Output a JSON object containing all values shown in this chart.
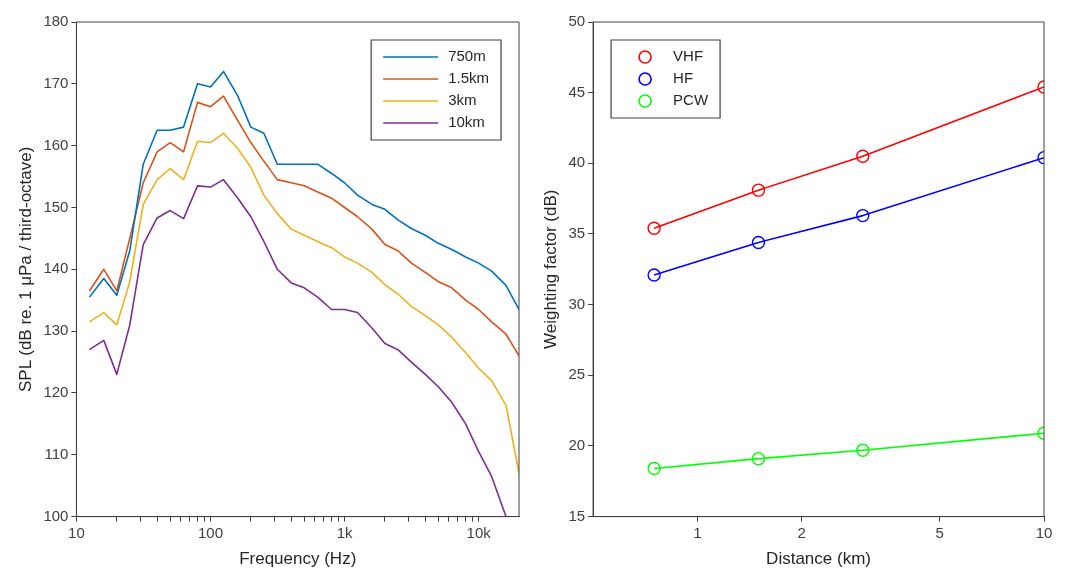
{
  "chart_data": [
    {
      "type": "line",
      "xlabel": "Frequency (Hz)",
      "ylabel": "SPL (dB re. 1 μPa / third-octave)",
      "log": "x",
      "grid": false,
      "legend": "top right",
      "marker": "none",
      "line_style": "solid",
      "x": [
        12.5,
        16,
        20,
        25,
        31.5,
        40,
        50,
        63,
        80,
        100,
        125,
        160,
        200,
        250,
        315,
        400,
        500,
        630,
        800,
        1000,
        1250,
        1600,
        2000,
        2500,
        3150,
        4000,
        5000,
        6300,
        8000,
        10000,
        12500,
        16000,
        20000
      ],
      "xlim": [
        10,
        20000
      ],
      "ylim": [
        100,
        180
      ],
      "xticks": [
        10,
        {
          "value": 20,
          "label": null
        },
        {
          "value": 30,
          "label": null
        },
        {
          "value": 40,
          "label": null
        },
        {
          "value": 50,
          "label": null
        },
        {
          "value": 60,
          "label": null
        },
        {
          "value": 70,
          "label": null
        },
        {
          "value": 80,
          "label": null
        },
        {
          "value": 90,
          "label": null
        },
        100,
        {
          "value": 200,
          "label": null
        },
        {
          "value": 300,
          "label": null
        },
        {
          "value": 400,
          "label": null
        },
        {
          "value": 500,
          "label": null
        },
        {
          "value": 600,
          "label": null
        },
        {
          "value": 700,
          "label": null
        },
        {
          "value": 800,
          "label": null
        },
        {
          "value": 900,
          "label": null
        },
        {
          "value": 1000,
          "label": "1k"
        },
        {
          "value": 2000,
          "label": null
        },
        {
          "value": 3000,
          "label": null
        },
        {
          "value": 4000,
          "label": null
        },
        {
          "value": 5000,
          "label": null
        },
        {
          "value": 6000,
          "label": null
        },
        {
          "value": 7000,
          "label": null
        },
        {
          "value": 8000,
          "label": null
        },
        {
          "value": 9000,
          "label": null
        },
        {
          "value": 10000,
          "label": "10k"
        }
      ],
      "yticks": [
        100,
        110,
        120,
        130,
        140,
        150,
        160,
        170,
        180
      ],
      "series": [
        {
          "name": "750m",
          "color": "#0072bd",
          "values": [
            135.5,
            138.5,
            135.8,
            143,
            157,
            162.5,
            162.5,
            163,
            170,
            169.5,
            172,
            168,
            163,
            162,
            157,
            157,
            157,
            157,
            155.5,
            154,
            152,
            150.5,
            149.7,
            148,
            146.6,
            145.5,
            144.2,
            143.2,
            142,
            141,
            139.7,
            137.4,
            133.5
          ]
        },
        {
          "name": "1.5km",
          "color": "#d95319",
          "values": [
            136.5,
            140,
            136.5,
            145,
            154,
            159,
            160.5,
            159,
            167,
            166.3,
            168,
            164,
            160.5,
            157.5,
            154.5,
            154,
            153.5,
            152.5,
            151.5,
            150,
            148.5,
            146.5,
            144,
            143,
            141,
            139.5,
            138,
            137,
            135,
            133.5,
            131.5,
            129.5,
            126
          ]
        },
        {
          "name": "3km",
          "color": "#edb120",
          "values": [
            131.5,
            133,
            131,
            138,
            150.5,
            154.5,
            156.3,
            154.5,
            160.7,
            160.5,
            162,
            159.5,
            156.5,
            152,
            149,
            146.5,
            145.5,
            144.5,
            143.5,
            142,
            141,
            139.5,
            137.5,
            136,
            134,
            132.5,
            131,
            129,
            126.5,
            124,
            122,
            118,
            107
          ]
        },
        {
          "name": "10km",
          "color": "#7e2f8e",
          "values": [
            127,
            128.5,
            123,
            131,
            144,
            148.3,
            149.5,
            148.2,
            153.5,
            153.3,
            154.5,
            151.5,
            148.5,
            144.5,
            140,
            137.8,
            137,
            135.5,
            133.5,
            133.5,
            133,
            130.5,
            128,
            127,
            125,
            123,
            121,
            118.5,
            115,
            110.5,
            106.5,
            100,
            null
          ]
        }
      ]
    },
    {
      "type": "line",
      "xlabel": "Distance (km)",
      "ylabel": "Weighting factor (dB)",
      "log": "x",
      "grid": false,
      "legend": "top left",
      "marker": "circle",
      "line_style": "solid",
      "x": [
        0.75,
        1.5,
        3,
        10
      ],
      "xlim": [
        0.5,
        10
      ],
      "ylim": [
        15,
        50
      ],
      "xticks": [
        1,
        2,
        5,
        10
      ],
      "yticks": [
        15,
        20,
        25,
        30,
        35,
        40,
        45,
        50
      ],
      "series": [
        {
          "name": "VHF",
          "color": "#ff0000",
          "values": [
            35.4,
            38.1,
            40.5,
            45.4
          ]
        },
        {
          "name": "HF",
          "color": "#0000ff",
          "values": [
            32.1,
            34.4,
            36.3,
            40.4
          ]
        },
        {
          "name": "PCW",
          "color": "#00ff00",
          "values": [
            18.4,
            19.1,
            19.7,
            20.9
          ]
        }
      ]
    }
  ]
}
